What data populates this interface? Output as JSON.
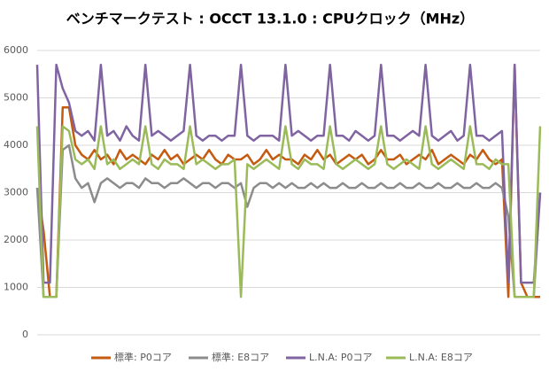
{
  "chart_data": {
    "type": "line",
    "title": "ベンチマークテスト : OCCT 13.1.0 : CPUクロック（MHz）",
    "ylim": [
      0,
      6000
    ],
    "yticks": [
      0,
      1000,
      2000,
      3000,
      4000,
      5000,
      6000
    ],
    "grid": true,
    "legend": "bottom",
    "series": [
      {
        "name": "標準: P0コア",
        "color": "#c55a11",
        "values": [
          3100,
          2200,
          800,
          800,
          4800,
          4800,
          4000,
          3800,
          3700,
          3900,
          3700,
          3800,
          3600,
          3900,
          3700,
          3800,
          3700,
          3600,
          3800,
          3700,
          3900,
          3700,
          3800,
          3600,
          3700,
          3800,
          3700,
          3900,
          3700,
          3600,
          3800,
          3700,
          3700,
          3800,
          3600,
          3700,
          3900,
          3700,
          3800,
          3700,
          3700,
          3600,
          3800,
          3700,
          3900,
          3700,
          3800,
          3600,
          3700,
          3800,
          3700,
          3800,
          3600,
          3700,
          3900,
          3700,
          3700,
          3800,
          3600,
          3700,
          3800,
          3700,
          3900,
          3600,
          3700,
          3800,
          3700,
          3600,
          3800,
          3700,
          3900,
          3700,
          3600,
          3700,
          800,
          5700,
          1100,
          800,
          800,
          800
        ]
      },
      {
        "name": "標準: E8コア",
        "color": "#8c8c8c",
        "values": [
          3100,
          800,
          800,
          800,
          3900,
          4000,
          3300,
          3100,
          3200,
          2800,
          3200,
          3300,
          3200,
          3100,
          3200,
          3200,
          3100,
          3300,
          3200,
          3200,
          3100,
          3200,
          3200,
          3300,
          3200,
          3100,
          3200,
          3200,
          3100,
          3200,
          3200,
          3100,
          3200,
          2700,
          3100,
          3200,
          3200,
          3100,
          3200,
          3100,
          3200,
          3100,
          3100,
          3200,
          3100,
          3200,
          3100,
          3100,
          3200,
          3100,
          3100,
          3200,
          3100,
          3100,
          3200,
          3100,
          3100,
          3200,
          3100,
          3100,
          3200,
          3100,
          3100,
          3200,
          3100,
          3100,
          3200,
          3100,
          3100,
          3200,
          3100,
          3100,
          3200,
          3100,
          2500,
          800,
          800,
          800,
          800,
          3000
        ]
      },
      {
        "name": "L.N.A: P0コア",
        "color": "#8064a2",
        "values": [
          5700,
          1100,
          1100,
          5700,
          5200,
          4900,
          4300,
          4200,
          4300,
          4100,
          5700,
          4200,
          4300,
          4100,
          4400,
          4200,
          4100,
          5700,
          4200,
          4300,
          4200,
          4100,
          4200,
          4300,
          5700,
          4200,
          4100,
          4200,
          4200,
          4100,
          4200,
          4200,
          5700,
          4200,
          4100,
          4200,
          4200,
          4200,
          4100,
          5700,
          4200,
          4300,
          4200,
          4100,
          4200,
          4200,
          5700,
          4200,
          4200,
          4100,
          4300,
          4200,
          4100,
          4200,
          5700,
          4200,
          4200,
          4100,
          4200,
          4300,
          4200,
          5700,
          4200,
          4100,
          4200,
          4300,
          4100,
          4200,
          5700,
          4200,
          4200,
          4100,
          4200,
          4300,
          1100,
          5700,
          1100,
          1100,
          1100,
          3000
        ]
      },
      {
        "name": "L.N.A: E8コア",
        "color": "#9bbb59",
        "values": [
          4400,
          800,
          800,
          800,
          4400,
          4300,
          3700,
          3600,
          3700,
          3500,
          4400,
          3600,
          3700,
          3500,
          3600,
          3700,
          3600,
          4400,
          3600,
          3500,
          3700,
          3600,
          3600,
          3500,
          4400,
          3600,
          3700,
          3600,
          3500,
          3600,
          3600,
          3700,
          800,
          3600,
          3500,
          3600,
          3700,
          3600,
          3500,
          4400,
          3600,
          3500,
          3700,
          3600,
          3600,
          3500,
          4400,
          3600,
          3500,
          3600,
          3700,
          3600,
          3500,
          3600,
          4400,
          3600,
          3500,
          3600,
          3700,
          3600,
          3500,
          4400,
          3600,
          3500,
          3600,
          3700,
          3600,
          3500,
          4400,
          3600,
          3600,
          3500,
          3700,
          3600,
          3600,
          800,
          800,
          800,
          800,
          4400
        ]
      }
    ]
  }
}
